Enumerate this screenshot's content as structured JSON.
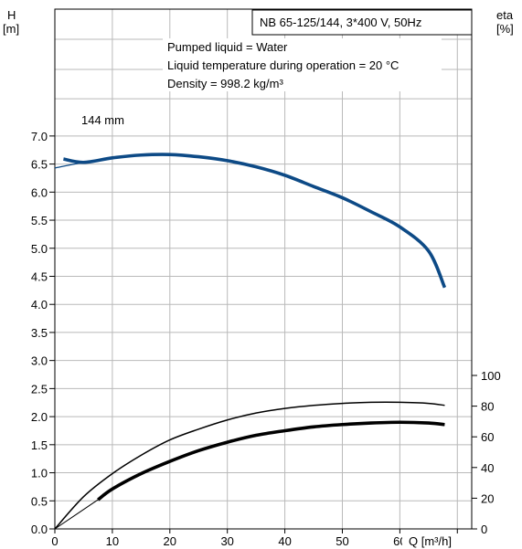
{
  "chart_data": {
    "type": "line",
    "title": "NB 65-125/144, 3*400 V, 50Hz",
    "info": [
      "Pumped liquid = Water",
      "Liquid temperature during operation = 20 °C",
      "Density = 998.2 kg/m³"
    ],
    "y_left_label": [
      "H",
      "[m]"
    ],
    "y_right_label": [
      "eta",
      "[%]"
    ],
    "x_label": "Q [m³/h]",
    "xlim": [
      0,
      72.5
    ],
    "ylim": [
      0,
      7.6
    ],
    "y2lim": [
      0,
      100
    ],
    "grid": true,
    "x_ticks": [
      "0",
      "10",
      "20",
      "30",
      "40",
      "50",
      "60"
    ],
    "x_tick_values": [
      0,
      10,
      20,
      30,
      40,
      50,
      60
    ],
    "y_ticks": [
      "0.0",
      "0.5",
      "1.0",
      "1.5",
      "2.0",
      "2.5",
      "3.0",
      "3.5",
      "4.0",
      "4.5",
      "5.0",
      "5.5",
      "6.0",
      "6.5",
      "7.0"
    ],
    "y_tick_values": [
      0,
      0.5,
      1.0,
      1.5,
      2.0,
      2.5,
      3.0,
      3.5,
      4.0,
      4.5,
      5.0,
      5.5,
      6.0,
      6.5,
      7.0
    ],
    "y2_ticks": [
      "0",
      "20",
      "40",
      "60",
      "80",
      "100"
    ],
    "y2_tick_values": [
      0,
      20,
      40,
      60,
      80,
      100
    ],
    "series": [
      {
        "name": "144 mm",
        "axis": "left",
        "color": "#0d4a86",
        "x_start": 0,
        "x_bold_from": 1.5,
        "x_end": 67.8,
        "x": [
          0,
          5,
          10,
          15,
          20,
          25,
          30,
          35,
          40,
          45,
          50,
          55,
          60,
          65,
          67.8
        ],
        "y": [
          6.43,
          6.53,
          6.61,
          6.66,
          6.67,
          6.63,
          6.56,
          6.45,
          6.3,
          6.1,
          5.9,
          5.65,
          5.38,
          4.95,
          4.3
        ]
      },
      {
        "axis": "right",
        "color": "#000000",
        "x": [
          0,
          5,
          10,
          15,
          20,
          25,
          30,
          35,
          40,
          45,
          50,
          55,
          60,
          65,
          67.8
        ],
        "y": [
          0,
          21,
          36,
          48,
          58,
          65,
          71,
          75.5,
          78.5,
          80.5,
          81.8,
          82.5,
          82.5,
          81.8,
          80.5
        ]
      },
      {
        "axis": "right",
        "color": "#000000",
        "x": [
          0,
          7.5,
          10,
          15,
          20,
          25,
          30,
          35,
          40,
          45,
          50,
          55,
          60,
          65,
          67.8
        ],
        "y": [
          0,
          19,
          26,
          36,
          44,
          51,
          56.5,
          61,
          64,
          66.5,
          68,
          69,
          69.5,
          69,
          68
        ]
      }
    ]
  }
}
